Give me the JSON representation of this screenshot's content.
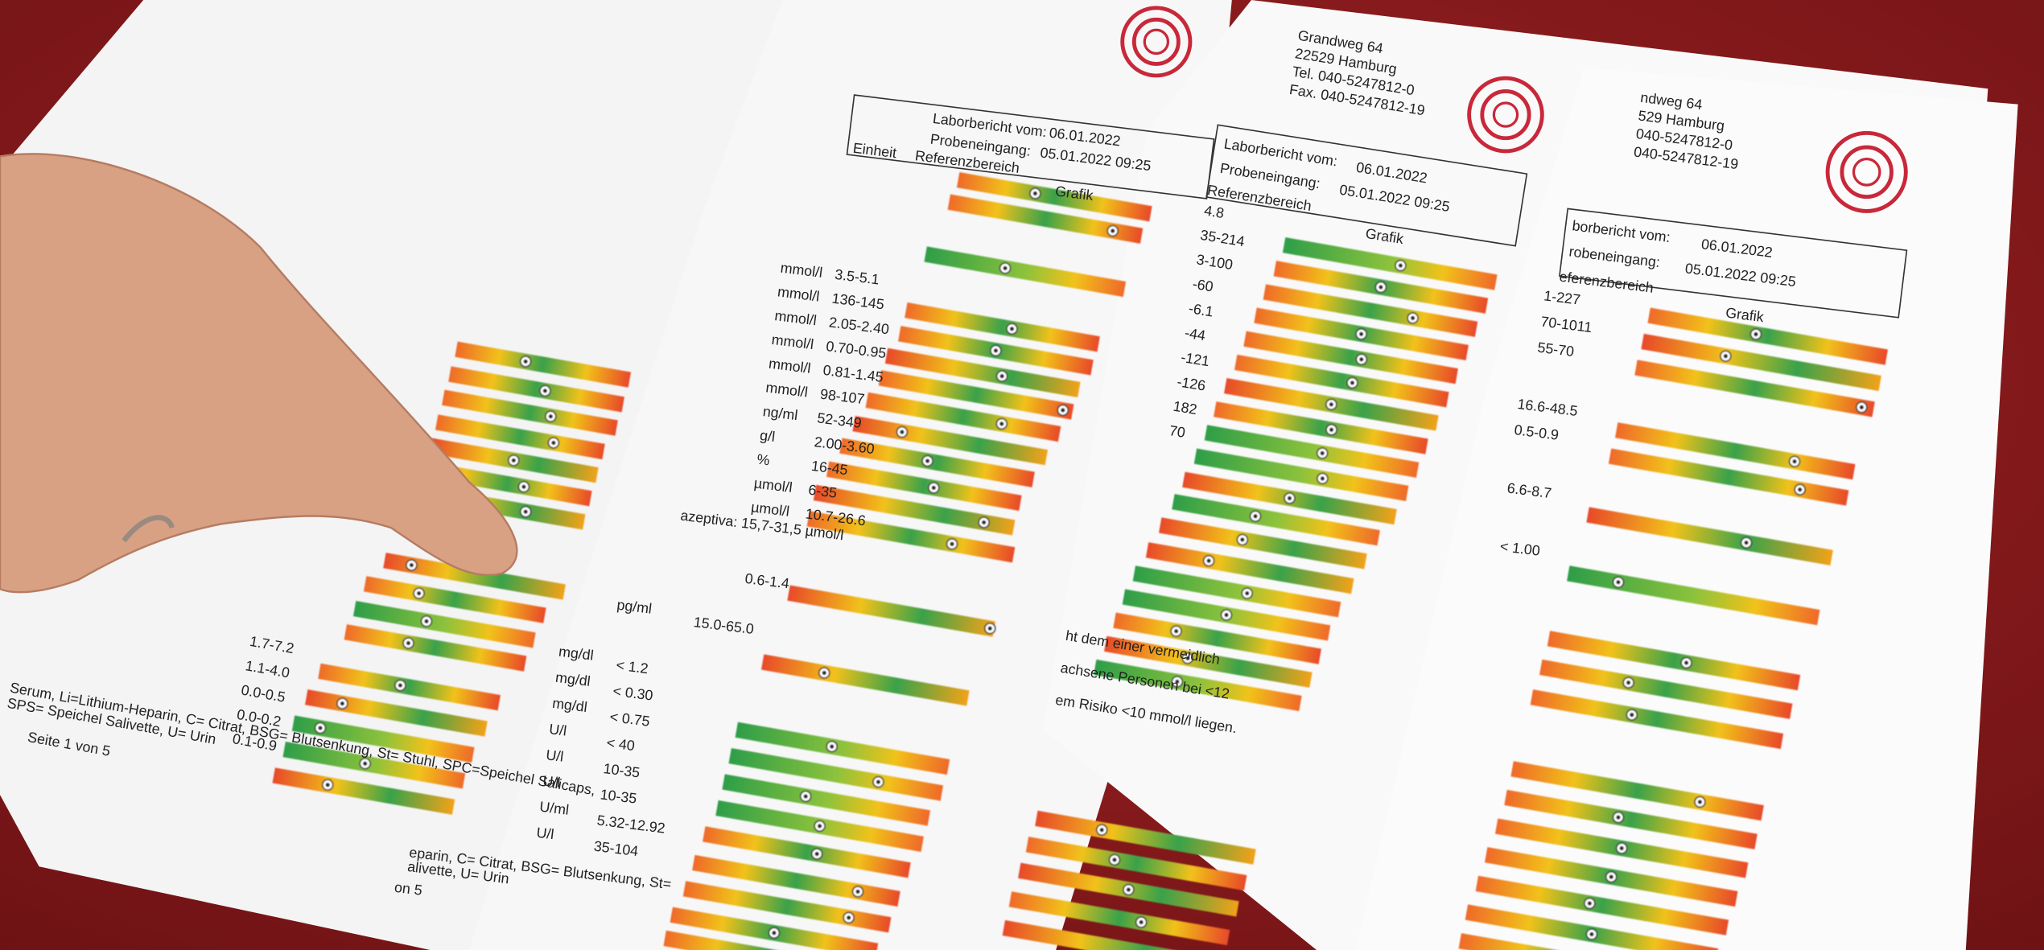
{
  "report_left": {
    "ranges": [
      "1.7-7.2",
      "1.1-4.0",
      "0.0-0.5",
      "0.0-0.2",
      "0.1-0.9"
    ],
    "footer": [
      "Serum, Li=Lithium-Heparin, C= Citrat, BSG= Blutsenkung, St= Stuhl, SPC=Speichel Salicaps,",
      "SPS= Speichel Salivette, U= Urin"
    ],
    "page": "Seite 1 von 5"
  },
  "report_middle": {
    "report_date_label": "Laborbericht vom:",
    "report_date": "06.01.2022",
    "receipt_label": "Probeneingang:",
    "receipt": "05.01.2022 09:25",
    "col_unit": "Einheit",
    "col_range": "Referenzbereich",
    "col_graph": "Grafik",
    "rows": [
      [
        "mmol/l",
        "3.5-5.1"
      ],
      [
        "mmol/l",
        "136-145"
      ],
      [
        "mmol/l",
        "2.05-2.40"
      ],
      [
        "mmol/l",
        "0.70-0.95"
      ],
      [
        "mmol/l",
        "0.81-1.45"
      ],
      [
        "mmol/l",
        "98-107"
      ],
      [
        "ng/ml",
        "52-349"
      ],
      [
        "g/l",
        "2.00-3.60"
      ],
      [
        "%",
        "16-45"
      ],
      [
        "µmol/l",
        "6-35"
      ],
      [
        "µmol/l",
        "10.7-26.6"
      ]
    ],
    "note": "azeptiva: 15,7-31,5 µmol/l",
    "extra_range": "0.6-1.4",
    "pg_row": [
      "pg/ml",
      "15.0-65.0"
    ],
    "lower_rows": [
      [
        "mg/dl",
        "< 1.2"
      ],
      [
        "mg/dl",
        "< 0.30"
      ],
      [
        "mg/dl",
        "< 0.75"
      ],
      [
        "U/l",
        "< 40"
      ],
      [
        "U/l",
        "10-35"
      ],
      [
        "U/l",
        "10-35"
      ],
      [
        "U/ml",
        "5.32-12.92"
      ],
      [
        "U/l",
        "35-104"
      ]
    ],
    "footer": [
      "eparin, C= Citrat, BSG= Blutsenkung, St=",
      "alivette, U= Urin"
    ],
    "page": "on 5"
  },
  "notes_center": [
    "ht dem einer vermeidlich",
    "achsene Personen bei <12",
    "em Risiko <10 mmol/l liegen."
  ],
  "report_right": {
    "address": [
      "Grandweg 64",
      "22529 Hamburg",
      "Tel. 040-5247812-0",
      "Fax. 040-5247812-19"
    ],
    "report_date_label": "Laborbericht vom:",
    "report_date": "06.01.2022",
    "receipt_label": "Probeneingang:",
    "receipt": "05.01.2022 09:25",
    "col_range": "Referenzbereich",
    "col_graph": "Grafik",
    "ranges": [
      "4.8",
      "35-214",
      "3-100",
      "-60",
      "-6.1",
      "-44",
      "-121",
      "-126",
      "182",
      "70"
    ]
  },
  "report_far_right": {
    "address": [
      "ndweg 64",
      "529 Hamburg",
      "040-5247812-0",
      "040-5247812-19"
    ],
    "report_date_label": "borbericht vom:",
    "report_date": "06.01.2022",
    "receipt_label": "robeneingang:",
    "receipt": "05.01.2022 09:25",
    "col_range": "eferenzbereich",
    "col_graph": "Grafik",
    "ranges": [
      "1-227",
      "70-1011",
      "55-70",
      "16.6-48.5",
      "0.5-0.9",
      "6.6-8.7",
      "< 1.00"
    ]
  }
}
